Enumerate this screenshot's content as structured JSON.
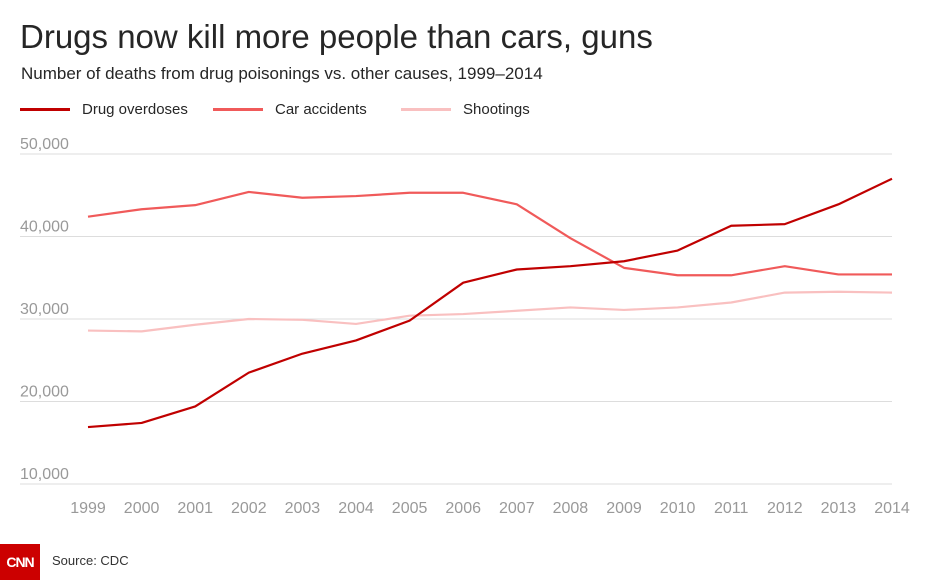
{
  "title": "Drugs now kill more people than cars, guns",
  "subtitle": "Number of deaths from drug poisonings vs. other causes, 1999–2014",
  "source": "Source: CDC",
  "logo": "CNN",
  "colors": {
    "drug": "#c00000",
    "car": "#f05a5a",
    "shoot": "#f9c0c0",
    "grid": "#dddddd",
    "tick": "#999999"
  },
  "chart_data": {
    "type": "line",
    "x": [
      1999,
      2000,
      2001,
      2002,
      2003,
      2004,
      2005,
      2006,
      2007,
      2008,
      2009,
      2010,
      2011,
      2012,
      2013,
      2014
    ],
    "ylim": [
      10000,
      50000
    ],
    "yticks": [
      10000,
      20000,
      30000,
      40000,
      50000
    ],
    "ytick_labels": [
      "10,000",
      "20,000",
      "30,000",
      "40,000",
      "50,000"
    ],
    "grid": true,
    "legend_position": "top-left",
    "series": [
      {
        "name": "Drug overdoses",
        "key": "drug",
        "values": [
          16900,
          17400,
          19400,
          23500,
          25800,
          27400,
          29800,
          34400,
          36000,
          36400,
          37000,
          38300,
          41300,
          41500,
          43900,
          47000
        ]
      },
      {
        "name": "Car accidents",
        "key": "car",
        "values": [
          42400,
          43300,
          43800,
          45400,
          44700,
          44900,
          45300,
          45300,
          43900,
          39800,
          36200,
          35300,
          35300,
          36400,
          35400,
          35400
        ]
      },
      {
        "name": "Shootings",
        "key": "shoot",
        "values": [
          28600,
          28500,
          29300,
          30000,
          29900,
          29400,
          30400,
          30600,
          31000,
          31400,
          31100,
          31400,
          32000,
          33200,
          33300,
          33200
        ]
      }
    ]
  }
}
